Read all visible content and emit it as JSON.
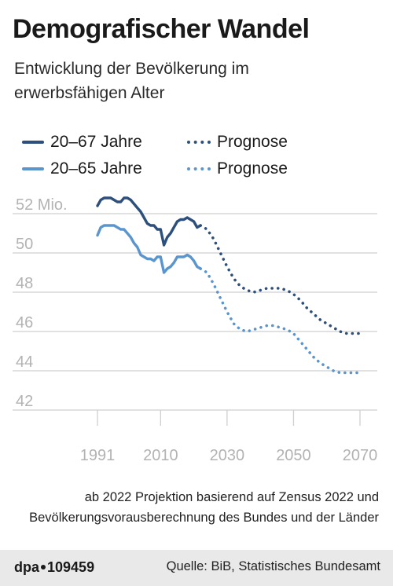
{
  "header": {
    "title": "Demografischer Wandel",
    "subtitle": "Entwicklung der Bevölkerung im erwerbsfähigen Alter"
  },
  "legend": {
    "series1_label": "20–67 Jahre",
    "series2_label": "20–65 Jahre",
    "projection_label": "Prognose"
  },
  "colors": {
    "series1": "#2d4f7b",
    "series2": "#5b95ce",
    "grid": "#cfcfcf",
    "tick": "#b3b3b3"
  },
  "chart_data": {
    "type": "line",
    "xlim": [
      1991,
      2070
    ],
    "ylim": [
      41,
      53
    ],
    "x_ticks": [
      "1991",
      "2010",
      "2030",
      "2050",
      "2070"
    ],
    "y_ticks": [
      {
        "value": 52,
        "label": "52 Mio."
      },
      {
        "value": 50,
        "label": "50"
      },
      {
        "value": 48,
        "label": "48"
      },
      {
        "value": 46,
        "label": "46"
      },
      {
        "value": 44,
        "label": "44"
      },
      {
        "value": 42,
        "label": "42"
      }
    ],
    "grid": true,
    "legend_position": "top-left",
    "series": [
      {
        "name": "20–67 Jahre",
        "style": "solid",
        "x": [
          1991,
          1992,
          1993,
          1994,
          1995,
          1996,
          1997,
          1998,
          1999,
          2000,
          2001,
          2002,
          2003,
          2004,
          2005,
          2006,
          2007,
          2008,
          2009,
          2010,
          2011,
          2012,
          2013,
          2014,
          2015,
          2016,
          2017,
          2018,
          2019,
          2020,
          2021,
          2022
        ],
        "y": [
          52.4,
          52.7,
          52.8,
          52.8,
          52.8,
          52.7,
          52.6,
          52.6,
          52.8,
          52.8,
          52.7,
          52.5,
          52.3,
          52.1,
          51.8,
          51.5,
          51.4,
          51.4,
          51.2,
          51.2,
          50.4,
          50.8,
          51.0,
          51.3,
          51.6,
          51.7,
          51.7,
          51.8,
          51.7,
          51.6,
          51.3,
          51.4
        ]
      },
      {
        "name": "Prognose",
        "style": "dotted",
        "x": [
          2022,
          2024,
          2026,
          2028,
          2030,
          2032,
          2034,
          2036,
          2038,
          2040,
          2042,
          2044,
          2046,
          2048,
          2050,
          2052,
          2054,
          2056,
          2058,
          2060,
          2062,
          2064,
          2066,
          2068,
          2070
        ],
        "y": [
          51.4,
          51.2,
          50.7,
          50.0,
          49.3,
          48.7,
          48.3,
          48.1,
          48.0,
          48.1,
          48.2,
          48.2,
          48.2,
          48.1,
          47.9,
          47.6,
          47.2,
          46.9,
          46.6,
          46.4,
          46.2,
          46.0,
          45.9,
          45.9,
          45.9
        ]
      },
      {
        "name": "20–65 Jahre",
        "style": "solid",
        "x": [
          1991,
          1992,
          1993,
          1994,
          1995,
          1996,
          1997,
          1998,
          1999,
          2000,
          2001,
          2002,
          2003,
          2004,
          2005,
          2006,
          2007,
          2008,
          2009,
          2010,
          2011,
          2012,
          2013,
          2014,
          2015,
          2016,
          2017,
          2018,
          2019,
          2020,
          2021,
          2022
        ],
        "y": [
          50.9,
          51.3,
          51.4,
          51.4,
          51.4,
          51.4,
          51.3,
          51.2,
          51.2,
          51.0,
          50.8,
          50.5,
          50.3,
          49.9,
          49.8,
          49.7,
          49.7,
          49.6,
          49.8,
          49.8,
          49.0,
          49.2,
          49.3,
          49.5,
          49.8,
          49.8,
          49.8,
          49.9,
          49.8,
          49.6,
          49.3,
          49.2
        ]
      },
      {
        "name": "Prognose",
        "style": "dotted",
        "x": [
          2022,
          2024,
          2026,
          2028,
          2030,
          2032,
          2034,
          2036,
          2038,
          2040,
          2042,
          2044,
          2046,
          2048,
          2050,
          2052,
          2054,
          2056,
          2058,
          2060,
          2062,
          2064,
          2066,
          2068,
          2070
        ],
        "y": [
          49.2,
          49.0,
          48.4,
          47.7,
          47.0,
          46.4,
          46.1,
          46.0,
          46.1,
          46.2,
          46.3,
          46.3,
          46.2,
          46.1,
          45.9,
          45.5,
          45.1,
          44.7,
          44.4,
          44.2,
          44.0,
          43.9,
          43.9,
          43.9,
          43.9
        ]
      }
    ]
  },
  "note": "ab 2022 Projektion basierend auf Zensus 2022 und Bevölkerungsvorausberechnung des Bundes und der Länder",
  "footer": {
    "agency_name": "dpa",
    "graphic_id": "109459",
    "source": "Quelle: BiB, Statistisches Bundesamt"
  }
}
